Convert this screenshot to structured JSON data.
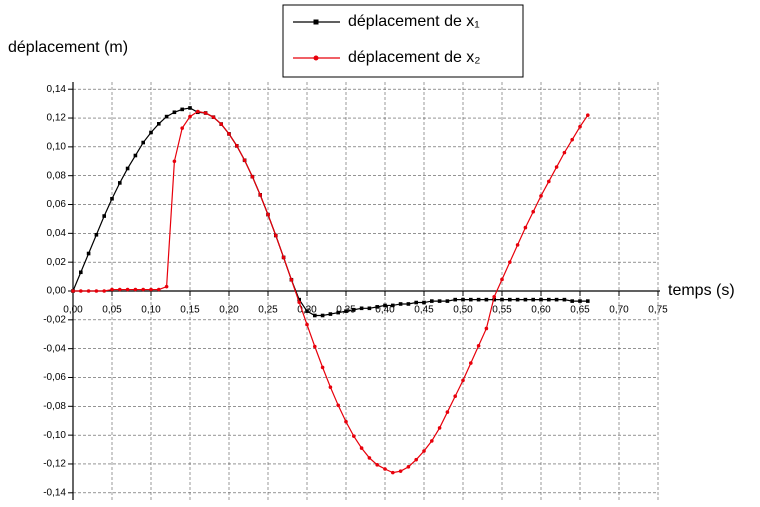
{
  "chart_data": {
    "type": "line",
    "y_label": "déplacement (m)",
    "x_label": "temps (s)",
    "x": [
      0,
      0.01,
      0.02,
      0.03,
      0.04,
      0.05,
      0.06,
      0.07,
      0.08,
      0.09,
      0.1,
      0.11,
      0.12,
      0.13,
      0.14,
      0.15,
      0.16,
      0.17,
      0.18,
      0.19,
      0.2,
      0.21,
      0.22,
      0.23,
      0.24,
      0.25,
      0.26,
      0.27,
      0.28,
      0.29,
      0.3,
      0.31,
      0.32,
      0.33,
      0.34,
      0.35,
      0.36,
      0.37,
      0.38,
      0.39,
      0.4,
      0.41,
      0.42,
      0.43,
      0.44,
      0.45,
      0.46,
      0.47,
      0.48,
      0.49,
      0.5,
      0.51,
      0.52,
      0.53,
      0.54,
      0.55,
      0.56,
      0.57,
      0.58,
      0.59,
      0.6,
      0.61,
      0.62,
      0.63,
      0.64,
      0.65,
      0.66
    ],
    "series": [
      {
        "name": "déplacement de x₁",
        "color": "#000000",
        "marker": "square",
        "values": [
          0,
          0.013,
          0.026,
          0.039,
          0.052,
          0.064,
          0.075,
          0.085,
          0.094,
          0.103,
          0.11,
          0.116,
          0.121,
          0.124,
          0.126,
          0.127,
          0.124,
          0.1235,
          0.1206,
          0.1158,
          0.109,
          0.1007,
          0.0907,
          0.0793,
          0.0667,
          0.053,
          0.0385,
          0.0233,
          0.0078,
          -0.006,
          -0.014,
          -0.017,
          -0.017,
          -0.016,
          -0.015,
          -0.014,
          -0.013,
          -0.012,
          -0.012,
          -0.011,
          -0.01,
          -0.01,
          -0.009,
          -0.009,
          -0.008,
          -0.008,
          -0.007,
          -0.007,
          -0.007,
          -0.006,
          -0.006,
          -0.006,
          -0.006,
          -0.006,
          -0.006,
          -0.006,
          -0.006,
          -0.006,
          -0.006,
          -0.006,
          -0.006,
          -0.006,
          -0.006,
          -0.006,
          -0.007,
          -0.007,
          -0.007
        ]
      },
      {
        "name": "déplacement de x₂",
        "color": "#e8000b",
        "marker": "circle",
        "values": [
          0,
          0,
          0,
          0,
          0,
          0.001,
          0.001,
          0.001,
          0.001,
          0.001,
          0.001,
          0.001,
          0.003,
          0.09,
          0.113,
          0.121,
          0.1245,
          0.1235,
          0.1206,
          0.1158,
          0.109,
          0.1007,
          0.0907,
          0.0793,
          0.0667,
          0.053,
          0.0385,
          0.0233,
          0.0078,
          -0.0078,
          -0.0233,
          -0.0385,
          -0.053,
          -0.0667,
          -0.0793,
          -0.0907,
          -0.1007,
          -0.109,
          -0.1158,
          -0.1206,
          -0.1235,
          -0.126,
          -0.125,
          -0.122,
          -0.117,
          -0.111,
          -0.104,
          -0.095,
          -0.084,
          -0.073,
          -0.062,
          -0.05,
          -0.038,
          -0.026,
          -0.004,
          0.008,
          0.02,
          0.032,
          0.044,
          0.055,
          0.066,
          0.076,
          0.086,
          0.096,
          0.105,
          0.114,
          0.122
        ]
      }
    ],
    "xlim": [
      0,
      0.75
    ],
    "ylim": [
      -0.145,
      0.145
    ],
    "xticks": [
      {
        "value": 0,
        "label": "0,00"
      },
      {
        "value": 0.05,
        "label": "0,05"
      },
      {
        "value": 0.1,
        "label": "0,10"
      },
      {
        "value": 0.15,
        "label": "0,15"
      },
      {
        "value": 0.2,
        "label": "0,20"
      },
      {
        "value": 0.25,
        "label": "0,25"
      },
      {
        "value": 0.3,
        "label": "0,30"
      },
      {
        "value": 0.35,
        "label": "0,35"
      },
      {
        "value": 0.4,
        "label": "0,40"
      },
      {
        "value": 0.45,
        "label": "0,45"
      },
      {
        "value": 0.5,
        "label": "0,50"
      },
      {
        "value": 0.55,
        "label": "0,55"
      },
      {
        "value": 0.6,
        "label": "0,60"
      },
      {
        "value": 0.65,
        "label": "0,65"
      },
      {
        "value": 0.7,
        "label": "0,70"
      },
      {
        "value": 0.75,
        "label": "0,75"
      }
    ],
    "yticks": [
      {
        "value": -0.14,
        "label": "-0,14"
      },
      {
        "value": -0.12,
        "label": "-0,12"
      },
      {
        "value": -0.1,
        "label": "-0,10"
      },
      {
        "value": -0.08,
        "label": "-0,08"
      },
      {
        "value": -0.06,
        "label": "-0,06"
      },
      {
        "value": -0.04,
        "label": "-0,04"
      },
      {
        "value": -0.02,
        "label": "-0,02"
      },
      {
        "value": 0,
        "label": "0,00"
      },
      {
        "value": 0.02,
        "label": "0,02"
      },
      {
        "value": 0.04,
        "label": "0,04"
      },
      {
        "value": 0.06,
        "label": "0,06"
      },
      {
        "value": 0.08,
        "label": "0,08"
      },
      {
        "value": 0.1,
        "label": "0,10"
      },
      {
        "value": 0.12,
        "label": "0,12"
      },
      {
        "value": 0.14,
        "label": "0,14"
      }
    ],
    "grid": true
  }
}
